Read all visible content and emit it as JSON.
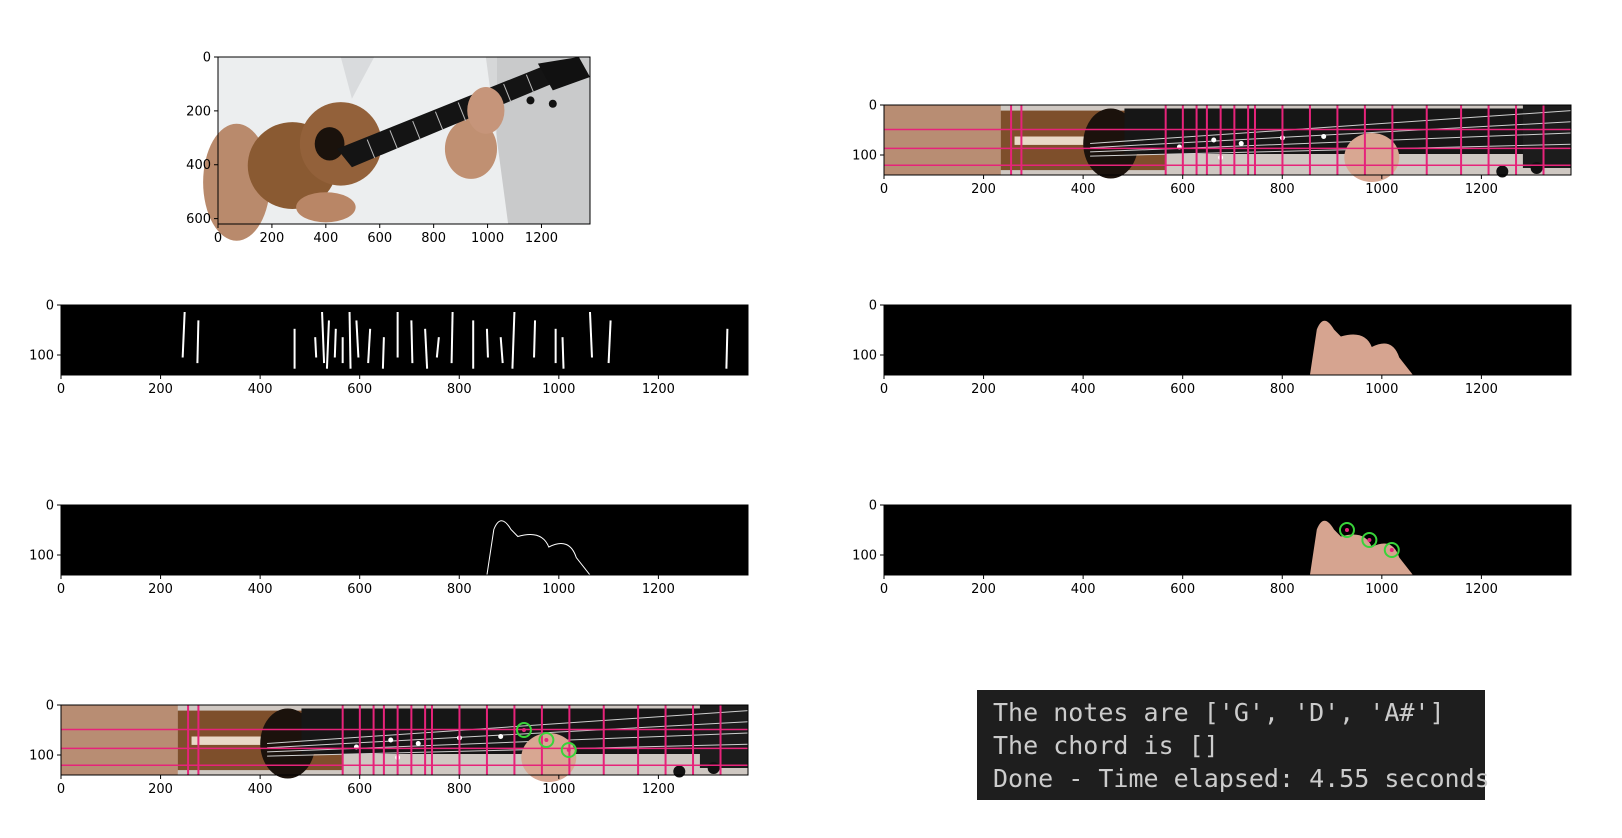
{
  "figure": {
    "panels": [
      {
        "id": "original-frame",
        "content": "ukulele-photo",
        "xticks": [
          "0",
          "200",
          "400",
          "600",
          "800",
          "1000",
          "1200"
        ],
        "yticks": [
          "0",
          "200",
          "400",
          "600"
        ],
        "xlim": [
          0,
          1380
        ],
        "ylim": [
          620,
          0
        ]
      },
      {
        "id": "fretboard-grid",
        "content": "fretboard-with-grid",
        "xticks": [
          "0",
          "200",
          "400",
          "600",
          "800",
          "1000",
          "1200"
        ],
        "yticks": [
          "0",
          "100"
        ],
        "xlim": [
          0,
          1380
        ],
        "ylim": [
          140,
          0
        ]
      },
      {
        "id": "edge-detection",
        "content": "edge-lines",
        "xticks": [
          "0",
          "200",
          "400",
          "600",
          "800",
          "1000",
          "1200"
        ],
        "yticks": [
          "0",
          "100"
        ],
        "xlim": [
          0,
          1380
        ],
        "ylim": [
          140,
          0
        ]
      },
      {
        "id": "skin-mask",
        "content": "hand-mask",
        "xticks": [
          "0",
          "200",
          "400",
          "600",
          "800",
          "1000",
          "1200"
        ],
        "yticks": [
          "0",
          "100"
        ],
        "xlim": [
          0,
          1380
        ],
        "ylim": [
          140,
          0
        ]
      },
      {
        "id": "hand-contour",
        "content": "hand-outline",
        "xticks": [
          "0",
          "200",
          "400",
          "600",
          "800",
          "1000",
          "1200"
        ],
        "yticks": [
          "0",
          "100"
        ],
        "xlim": [
          0,
          1380
        ],
        "ylim": [
          140,
          0
        ]
      },
      {
        "id": "fingertip-detection",
        "content": "hand-mask-fingertips",
        "xticks": [
          "0",
          "200",
          "400",
          "600",
          "800",
          "1000",
          "1200"
        ],
        "yticks": [
          "0",
          "100"
        ],
        "xlim": [
          0,
          1380
        ],
        "ylim": [
          140,
          0
        ]
      },
      {
        "id": "final-overlay",
        "content": "fretboard-with-grid-fingertips",
        "xticks": [
          "0",
          "200",
          "400",
          "600",
          "800",
          "1000",
          "1200"
        ],
        "yticks": [
          "0",
          "100"
        ],
        "xlim": [
          0,
          1380
        ],
        "ylim": [
          140,
          0
        ]
      }
    ],
    "fingertips": [
      {
        "x": 930,
        "y": 50
      },
      {
        "x": 975,
        "y": 70
      },
      {
        "x": 1020,
        "y": 90
      }
    ],
    "colors": {
      "grid_line": "#e6237a",
      "fingertip_circle": "#39d43a",
      "fingertip_center": "#e6237a"
    }
  },
  "terminal": {
    "lines": [
      "The notes are ['G', 'D', 'A#']",
      "The chord is []",
      "Done - Time elapsed: 4.55 seconds"
    ]
  }
}
